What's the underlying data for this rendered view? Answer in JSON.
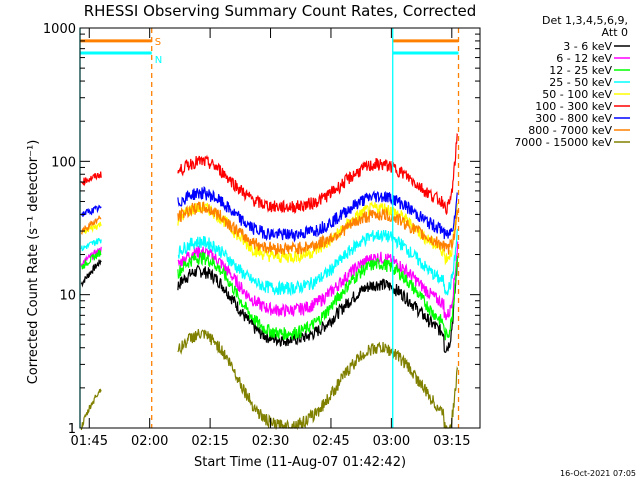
{
  "chart_data": {
    "type": "line",
    "title": "RHESSI Observing Summary Count Rates, Corrected",
    "xlabel": "Start Time (11-Aug-07 01:42:42)",
    "ylabel": "Corrected Count Rate (s⁻¹ detector⁻¹)",
    "x_ticks": [
      "01:45",
      "02:00",
      "02:15",
      "02:30",
      "02:45",
      "03:00",
      "03:15"
    ],
    "y_ticks": [
      "1",
      "10",
      "100",
      "1000"
    ],
    "yscale": "log",
    "ylim": [
      1,
      1000
    ],
    "xlim": [
      "01:42:42",
      "03:22:00"
    ],
    "legend_header": [
      "Det 1,3,4,5,6,9,",
      "Att 0"
    ],
    "legend_position": "right",
    "timestamp": "16-Oct-2021 07:05",
    "flags": [
      {
        "label": "S",
        "color": "#ff8000",
        "value": 800
      },
      {
        "label": "N",
        "color": "#00ffff",
        "value": 650
      }
    ],
    "day_windows": [
      [
        "01:42:42",
        "02:00:30"
      ],
      [
        "03:00:20",
        "03:16:40"
      ]
    ],
    "night_window": [
      "02:02:30",
      "03:00:20"
    ],
    "series": [
      {
        "name": "3 - 6 keV",
        "color": "#000000",
        "pre": [
          12,
          18
        ],
        "amp": [
          15,
          4.5,
          12
        ],
        "post": 4,
        "peak": 20
      },
      {
        "name": "6 - 12 keV",
        "color": "#ff00ff",
        "pre": [
          17,
          22
        ],
        "amp": [
          21,
          7.5,
          19
        ],
        "post": 7,
        "peak": 25
      },
      {
        "name": "12 - 25 keV",
        "color": "#00ff00",
        "pre": [
          16,
          21
        ],
        "amp": [
          19,
          5,
          17
        ],
        "post": 5,
        "peak": 22
      },
      {
        "name": "25 - 50 keV",
        "color": "#00ffff",
        "pre": [
          22,
          26
        ],
        "amp": [
          25,
          11,
          28
        ],
        "post": 11,
        "peak": 32
      },
      {
        "name": "50 - 100 keV",
        "color": "#ffff00",
        "pre": [
          29,
          34
        ],
        "amp": [
          45,
          19,
          45
        ],
        "post": 19,
        "peak": 50
      },
      {
        "name": "100 - 300 keV",
        "color": "#ff0000",
        "pre": [
          70,
          80
        ],
        "amp": [
          100,
          45,
          95
        ],
        "post": 45,
        "peak": 180
      },
      {
        "name": "300 - 800 keV",
        "color": "#0000ff",
        "pre": [
          40,
          45
        ],
        "amp": [
          58,
          28,
          55
        ],
        "post": 28,
        "peak": 60
      },
      {
        "name": "800 - 7000 keV",
        "color": "#ff8000",
        "pre": [
          30,
          38
        ],
        "amp": [
          45,
          22,
          40
        ],
        "post": 22,
        "peak": 45
      },
      {
        "name": "7000 - 15000 keV",
        "color": "#808000",
        "pre": [
          1,
          2
        ],
        "amp": [
          5,
          1,
          4
        ],
        "post": 1,
        "peak": 3
      }
    ]
  }
}
